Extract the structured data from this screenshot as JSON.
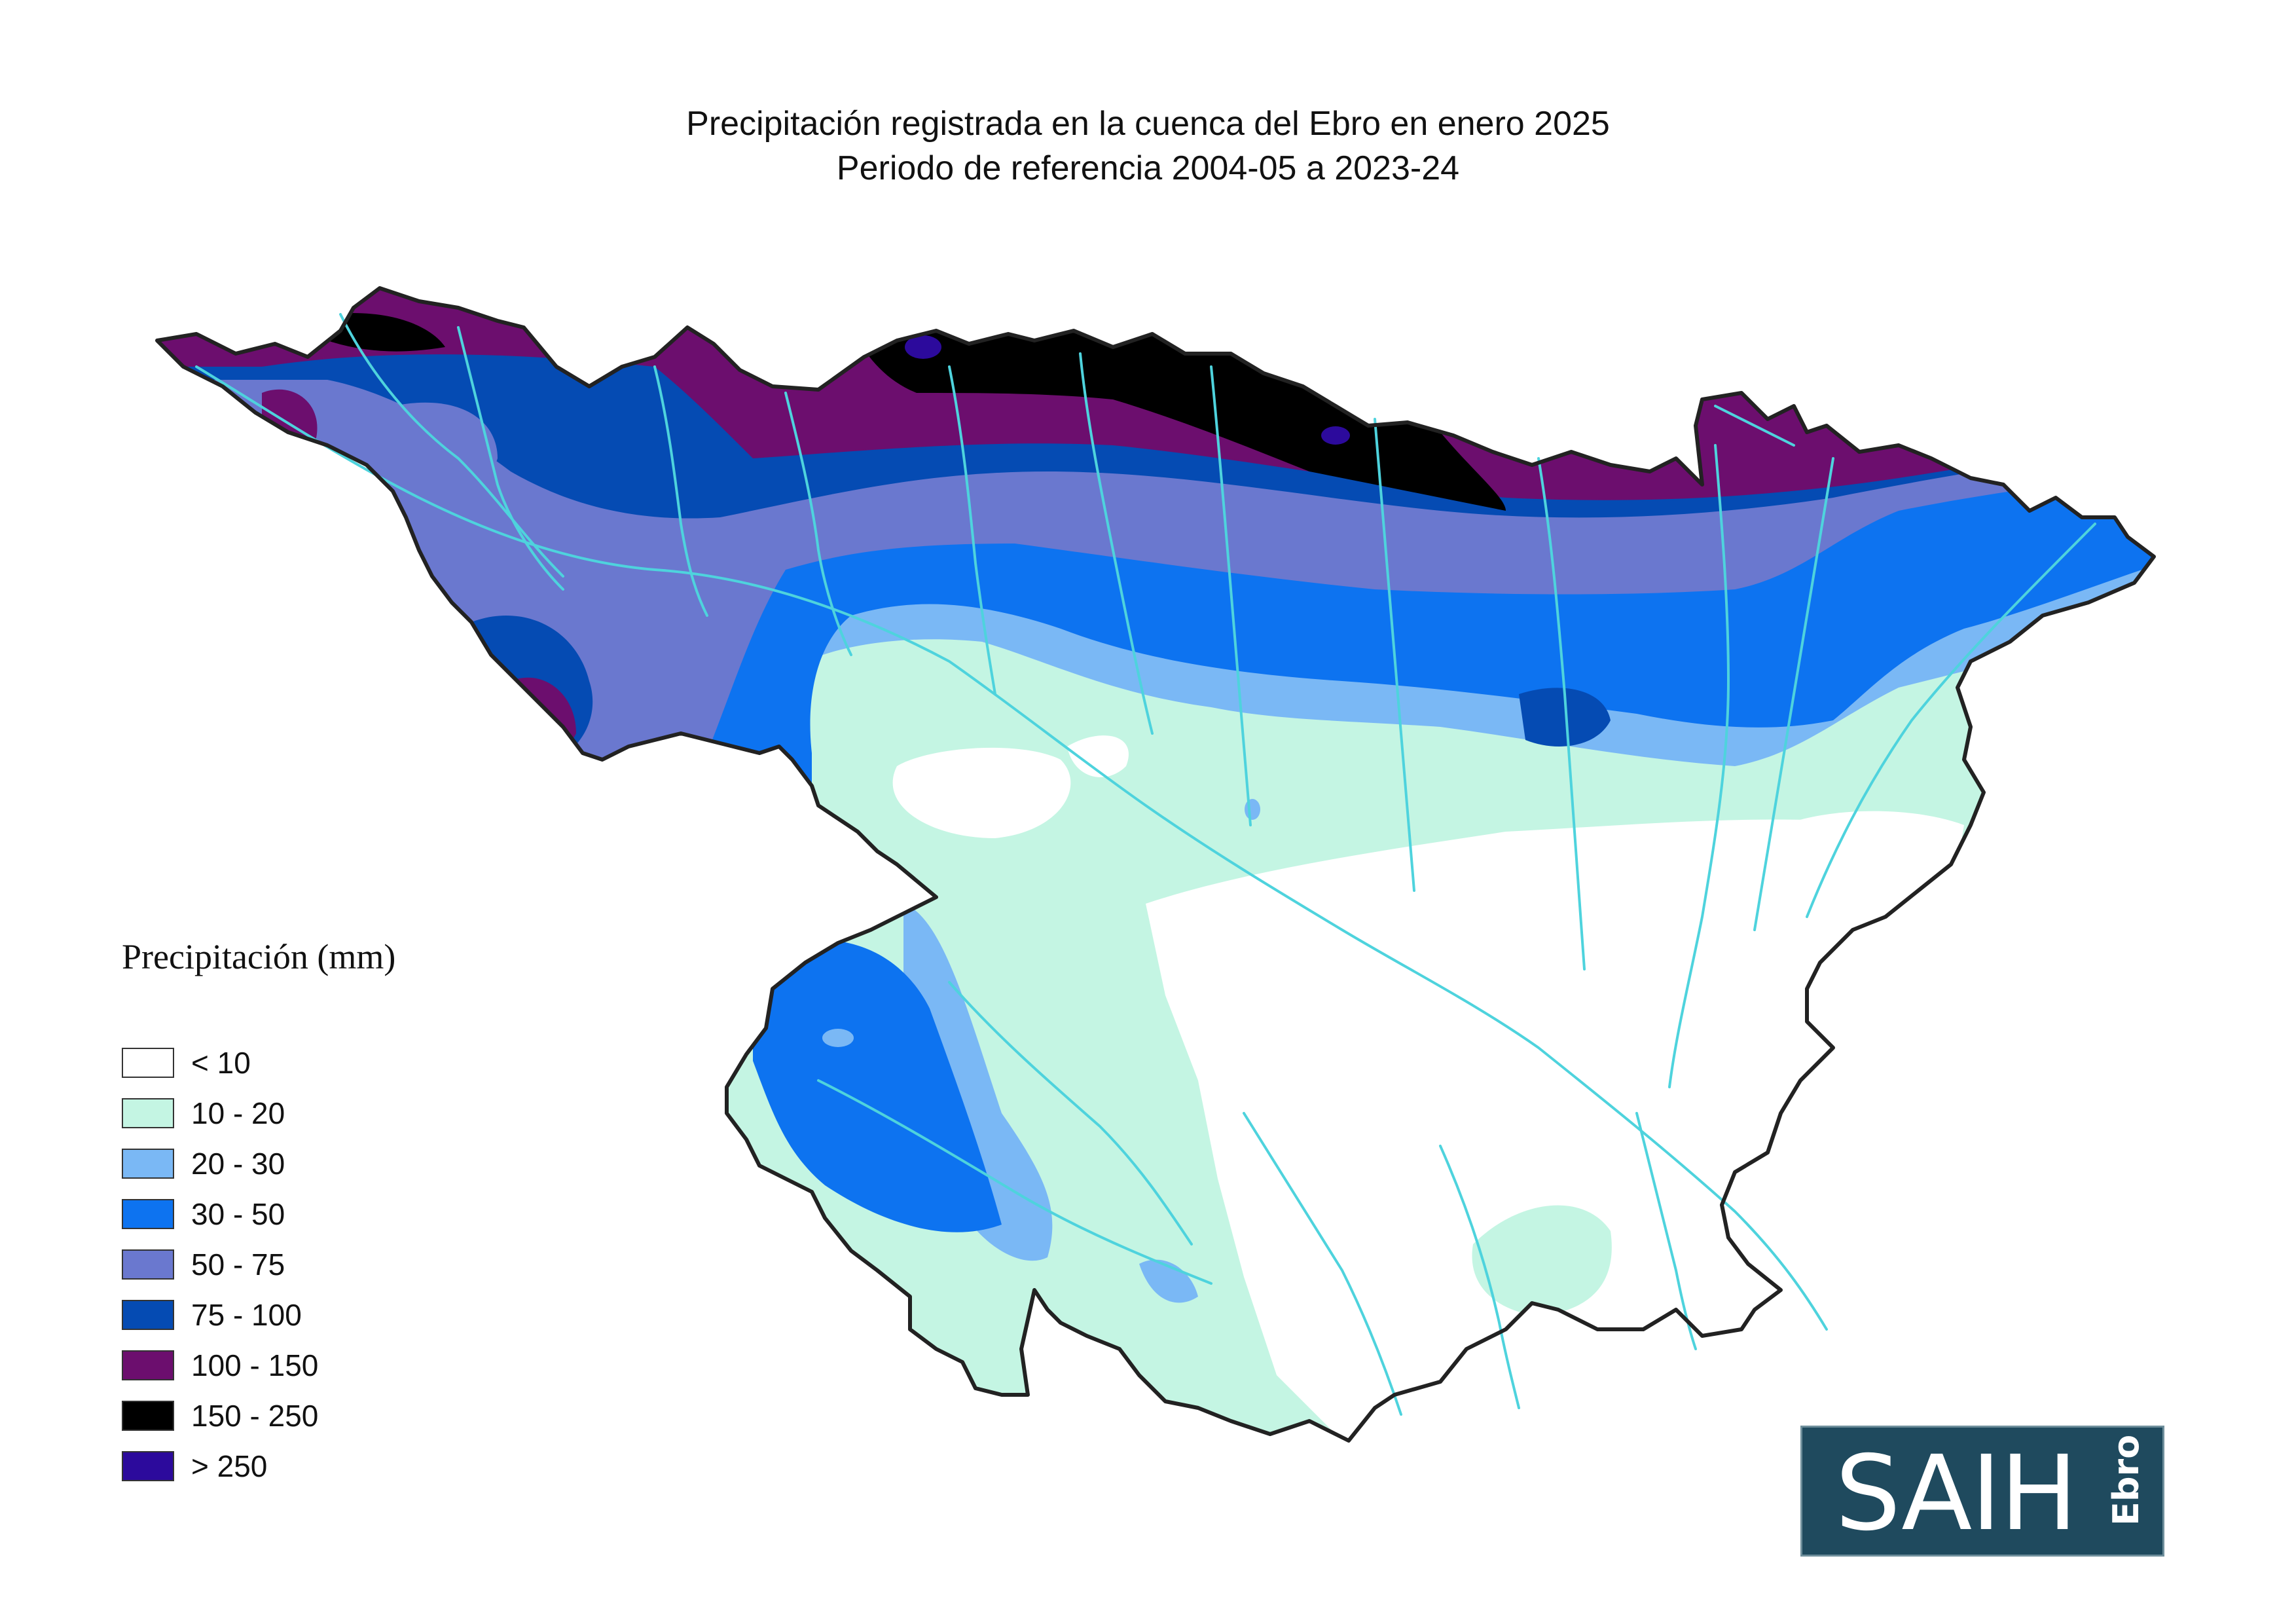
{
  "title": {
    "line1": "Precipitación registrada en la cuenca del Ebro en enero 2025",
    "line2": "Periodo de referencia 2004-05 a 2023-24"
  },
  "legend": {
    "title": "Precipitación (mm)",
    "items": [
      {
        "label": "< 10",
        "color": "#ffffff"
      },
      {
        "label": "10 - 20",
        "color": "#c4f5e3"
      },
      {
        "label": "20 - 30",
        "color": "#7ab8f5"
      },
      {
        "label": "30 - 50",
        "color": "#0d73f0"
      },
      {
        "label": "50 - 75",
        "color": "#6a78cf"
      },
      {
        "label": "75 - 100",
        "color": "#054bb3"
      },
      {
        "label": "100 - 150",
        "color": "#6c0e6e"
      },
      {
        "label": "150 - 250",
        "color": "#000000"
      },
      {
        "label": "> 250",
        "color": "#2c0a9c"
      }
    ]
  },
  "map": {
    "river_color": "#4ed3dd",
    "border_color": "#222222"
  },
  "logo": {
    "main": "SAIH",
    "sub": "Ebro",
    "background": "#1f4a5e"
  }
}
